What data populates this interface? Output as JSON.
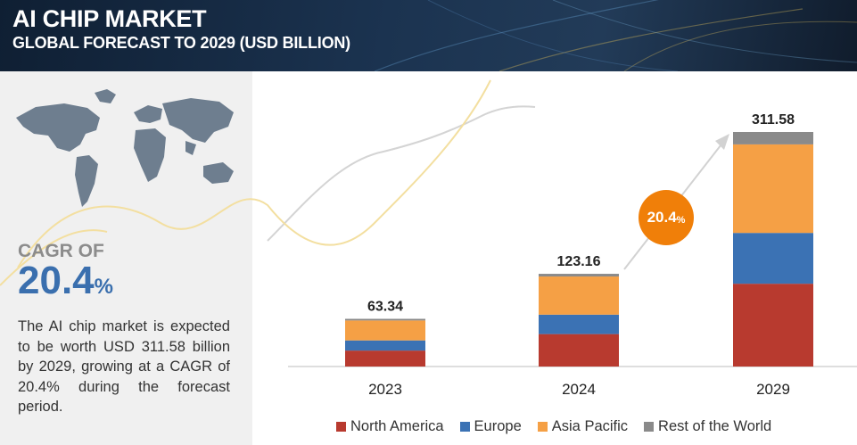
{
  "header": {
    "title": "AI CHIP MARKET",
    "subtitle": "GLOBAL FORECAST TO 2029 (USD BILLION)"
  },
  "summary": {
    "cagr_label": "CAGR OF",
    "cagr_value": "20.4",
    "cagr_unit": "%",
    "description": "The AI chip market is expected to be worth USD 311.58 billion by 2029, growing at a CAGR of 20.4% during the forecast period."
  },
  "cagr_bubble": {
    "value": "20.4",
    "unit": "%"
  },
  "colors": {
    "north_america": "#b83a2f",
    "europe": "#3b72b4",
    "asia_pacific": "#f5a045",
    "rest_of_world": "#8a8a8a",
    "accent": "#f07f09",
    "header_bg": "#162a42"
  },
  "chart_data": {
    "type": "bar",
    "stacked": true,
    "categories": [
      "2023",
      "2024",
      "2029"
    ],
    "totals": [
      63.34,
      123.16,
      311.58
    ],
    "series": [
      {
        "name": "North America",
        "color": "#b83a2f",
        "values": [
          21.2,
          43.1,
          110.0
        ]
      },
      {
        "name": "Europe",
        "color": "#3b72b4",
        "values": [
          13.5,
          25.8,
          67.5
        ]
      },
      {
        "name": "Asia Pacific",
        "color": "#f5a045",
        "values": [
          26.5,
          50.7,
          117.6
        ]
      },
      {
        "name": "Rest of the World",
        "color": "#8a8a8a",
        "values": [
          2.14,
          3.56,
          16.48
        ]
      }
    ],
    "xlabel": "",
    "ylabel": "",
    "ylim": [
      0,
      320
    ],
    "legend_position": "bottom",
    "grid": false,
    "annotation": "CAGR 20.4%"
  }
}
